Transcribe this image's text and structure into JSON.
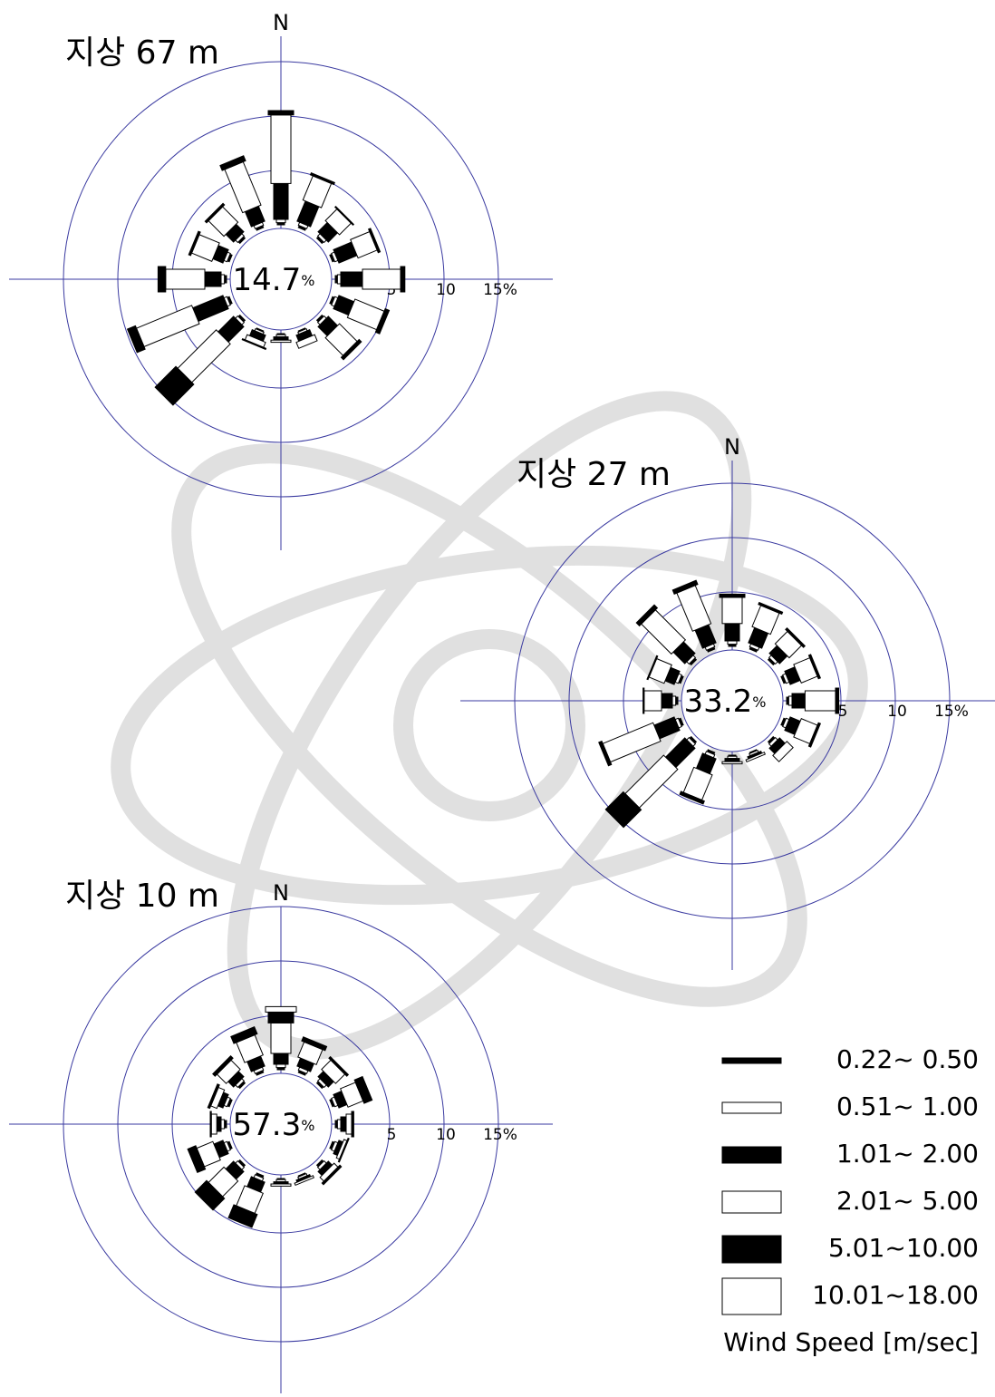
{
  "legend": {
    "title": "Wind Speed [m/sec]",
    "items": [
      {
        "label": "0.22~ 0.50",
        "fill": "#000000"
      },
      {
        "label": "0.51~ 1.00",
        "fill": "#ffffff"
      },
      {
        "label": "1.01~ 2.00",
        "fill": "#000000"
      },
      {
        "label": "2.01~ 5.00",
        "fill": "#ffffff"
      },
      {
        "label": "5.01~10.00",
        "fill": "#000000"
      },
      {
        "label": "10.01~18.00",
        "fill": "#ffffff"
      }
    ]
  },
  "chart_data": [
    {
      "type": "windrose",
      "title": "지상 67 m",
      "calm": 14.7,
      "calm_unit": "%",
      "categories": [
        "N",
        null,
        null,
        null,
        null,
        null,
        null,
        null,
        null,
        null,
        null,
        null,
        null,
        null,
        null,
        null
      ],
      "rlim": [
        0,
        15
      ],
      "rticks": [
        5,
        10,
        {
          "value": 15,
          "label": "15%"
        }
      ],
      "series": [
        {
          "values": [
            0.2,
            0.2,
            0.2,
            0.2,
            0.2,
            0.2,
            0.2,
            0.1,
            0.1,
            0.1,
            0.2,
            0.2,
            0.2,
            0.2,
            0.2,
            0.2
          ]
        },
        {
          "values": [
            0.3,
            0.3,
            0.3,
            0.3,
            0.3,
            0.3,
            0.3,
            0.2,
            0.2,
            0.2,
            0.3,
            0.3,
            0.3,
            0.3,
            0.3,
            0.3
          ]
        },
        {
          "values": [
            3.3,
            2.0,
            1.2,
            1.8,
            2.0,
            1.5,
            1.2,
            0.6,
            0.3,
            0.6,
            2.0,
            3.0,
            1.5,
            1.0,
            1.0,
            1.5
          ]
        },
        {
          "values": [
            6.3,
            2.4,
            1.5,
            1.9,
            3.5,
            2.9,
            2.3,
            0.6,
            0.2,
            0.5,
            5.0,
            5.5,
            3.6,
            2.0,
            2.0,
            4.3
          ]
        },
        {
          "values": [
            0.4,
            0.2,
            0.1,
            0.2,
            0.4,
            0.4,
            0.3,
            0,
            0,
            0.1,
            2.7,
            0.8,
            0.7,
            0.2,
            0.2,
            0.5
          ]
        },
        {
          "values": [
            0,
            0,
            0,
            0,
            0,
            0,
            0,
            0,
            0,
            0,
            0,
            0,
            0,
            0,
            0,
            0
          ]
        }
      ]
    },
    {
      "type": "windrose",
      "title": "지상 27 m",
      "calm": 33.2,
      "calm_unit": "%",
      "categories": [
        "N",
        null,
        null,
        null,
        null,
        null,
        null,
        null,
        null,
        null,
        null,
        null,
        null,
        null,
        null,
        null
      ],
      "rlim": [
        0,
        15
      ],
      "rticks": [
        5,
        10,
        {
          "value": 15,
          "label": "15%"
        }
      ],
      "series": [
        {
          "values": [
            0.2,
            0.2,
            0.2,
            0.2,
            0.2,
            0.2,
            0.2,
            0.1,
            0.1,
            0.2,
            0.2,
            0.2,
            0.2,
            0.2,
            0.2,
            0.2
          ]
        },
        {
          "values": [
            0.3,
            0.3,
            0.3,
            0.3,
            0.3,
            0.3,
            0.3,
            0.2,
            0.2,
            0.3,
            0.3,
            0.3,
            0.3,
            0.3,
            0.3,
            0.3
          ]
        },
        {
          "values": [
            1.6,
            1.5,
            1.0,
            1.0,
            1.2,
            1.0,
            0.7,
            0.2,
            0.3,
            1.5,
            2.5,
            2.0,
            1.0,
            0.9,
            1.5,
            1.8
          ]
        },
        {
          "values": [
            2.4,
            2.1,
            1.6,
            1.6,
            2.8,
            1.6,
            0.8,
            0.2,
            0.2,
            2.5,
            5.0,
            5.0,
            1.6,
            1.5,
            3.9,
            3.8
          ]
        },
        {
          "values": [
            0.3,
            0.2,
            0.2,
            0.2,
            0.3,
            0.2,
            0,
            0,
            0,
            0.3,
            2.3,
            0.3,
            0.1,
            0.1,
            0.4,
            0.4
          ]
        },
        {
          "values": [
            0,
            0,
            0,
            0,
            0,
            0,
            0,
            0,
            0,
            0,
            0,
            0,
            0,
            0,
            0,
            0
          ]
        }
      ]
    },
    {
      "type": "windrose",
      "title": "지상 10 m",
      "calm": 57.3,
      "calm_unit": "%",
      "categories": [
        "N",
        null,
        null,
        null,
        null,
        null,
        null,
        null,
        null,
        null,
        null,
        null,
        null,
        null,
        null,
        null
      ],
      "rlim": [
        0,
        15
      ],
      "rticks": [
        5,
        10,
        {
          "value": 15,
          "label": "15%"
        }
      ],
      "series": [
        {
          "values": [
            0.2,
            0.2,
            0.2,
            0.2,
            0.2,
            0.2,
            0.2,
            0.1,
            0.1,
            0.2,
            0.2,
            0.2,
            0.2,
            0.2,
            0.2,
            0.2
          ]
        },
        {
          "values": [
            0.3,
            0.3,
            0.3,
            0.3,
            0.3,
            0.3,
            0.3,
            0.2,
            0.2,
            0.3,
            0.3,
            0.3,
            0.3,
            0.3,
            0.3,
            0.3
          ]
        },
        {
          "values": [
            1.0,
            0.8,
            0.7,
            0.8,
            0.5,
            0.4,
            0.5,
            0.2,
            0.2,
            1.0,
            1.0,
            0.9,
            0.4,
            0.5,
            0.7,
            1.0
          ]
        },
        {
          "values": [
            2.8,
            1.5,
            1.2,
            1.5,
            0.5,
            0.3,
            0.5,
            0.2,
            0.2,
            2.0,
            2.0,
            1.6,
            0.5,
            0.6,
            1.2,
            2.0
          ]
        },
        {
          "values": [
            1.0,
            0.4,
            0.2,
            0.8,
            0.2,
            0.1,
            0.2,
            0,
            0,
            1.3,
            1.5,
            0.8,
            0.1,
            0.2,
            0.3,
            0.7
          ]
        },
        {
          "values": [
            0.5,
            0,
            0,
            0,
            0,
            0,
            0,
            0,
            0,
            0,
            0,
            0,
            0,
            0,
            0,
            0
          ]
        }
      ]
    }
  ]
}
